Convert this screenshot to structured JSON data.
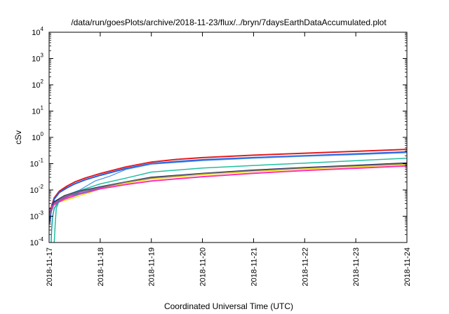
{
  "chart_data": {
    "type": "line",
    "title": "/data/run/goesPlots/archive/2018-11-23/flux/../bryn/7daysEarthDataAccumulated.plot",
    "xlabel": "Coordinated Universal Time (UTC)",
    "ylabel": "cSv",
    "x_tick_labels": [
      "2018-11-17",
      "2018-11-18",
      "2018-11-19",
      "2018-11-20",
      "2018-11-21",
      "2018-11-22",
      "2018-11-23",
      "2018-11-24"
    ],
    "xlim_days": [
      0,
      7
    ],
    "y_scale": "log",
    "y_exponents": [
      -4,
      -3,
      -2,
      -1,
      0,
      1,
      2,
      3,
      4
    ],
    "y_tick_base": "10",
    "ylim": [
      0.0001,
      10000
    ],
    "grid": false,
    "legend": "none",
    "series": [
      {
        "color": "#e41a1c",
        "width": 2.0,
        "x": [
          0,
          0.05,
          0.1,
          0.2,
          0.35,
          0.5,
          0.7,
          1.0,
          1.5,
          2.0,
          2.5,
          3.0,
          4.0,
          5.0,
          6.0,
          7.0
        ],
        "y": [
          0.0006,
          0.0025,
          0.005,
          0.009,
          0.014,
          0.02,
          0.028,
          0.042,
          0.075,
          0.115,
          0.145,
          0.17,
          0.21,
          0.25,
          0.295,
          0.35
        ]
      },
      {
        "color": "#1f5fe0",
        "width": 2.0,
        "x": [
          0,
          0.05,
          0.1,
          0.2,
          0.35,
          0.5,
          0.7,
          1.0,
          1.5,
          2.0,
          2.5,
          3.0,
          4.0,
          5.0,
          6.0,
          7.0
        ],
        "y": [
          0.0005,
          0.002,
          0.0045,
          0.008,
          0.012,
          0.017,
          0.024,
          0.036,
          0.065,
          0.1,
          0.12,
          0.14,
          0.17,
          0.2,
          0.235,
          0.28
        ]
      },
      {
        "color": "#4a8fe8",
        "width": 1.2,
        "x": [
          0,
          0.1,
          0.3,
          0.6,
          0.9,
          1.2,
          1.5,
          2.0,
          3.0,
          4.0,
          5.0,
          6.0,
          7.0
        ],
        "y": [
          0.0009,
          0.003,
          0.006,
          0.01,
          0.022,
          0.034,
          0.06,
          0.095,
          0.13,
          0.16,
          0.19,
          0.22,
          0.26
        ]
      },
      {
        "color": "#20c0a0",
        "width": 1.5,
        "x": [
          0.1,
          0.12,
          0.14,
          0.2,
          0.4,
          0.7,
          1.0,
          1.5,
          2.0,
          3.0,
          4.0,
          5.0,
          6.0,
          7.0
        ],
        "y": [
          0.0001,
          0.0005,
          0.002,
          0.004,
          0.007,
          0.011,
          0.017,
          0.028,
          0.048,
          0.068,
          0.085,
          0.105,
          0.13,
          0.16
        ]
      },
      {
        "color": "#202060",
        "width": 2.0,
        "x": [
          0,
          0.1,
          0.3,
          0.6,
          1.0,
          1.5,
          2.0,
          3.0,
          4.0,
          5.0,
          6.0,
          7.0
        ],
        "y": [
          0.0012,
          0.0035,
          0.006,
          0.009,
          0.013,
          0.02,
          0.03,
          0.042,
          0.056,
          0.07,
          0.085,
          0.105
        ]
      },
      {
        "color": "#8e44ad",
        "width": 1.8,
        "x": [
          0,
          0.1,
          0.3,
          0.6,
          1.0,
          1.5,
          2.0,
          3.0,
          4.0,
          5.0,
          6.0,
          7.0
        ],
        "y": [
          0.001,
          0.003,
          0.0055,
          0.0085,
          0.012,
          0.019,
          0.028,
          0.04,
          0.053,
          0.066,
          0.08,
          0.098
        ]
      },
      {
        "color": "#707070",
        "width": 1.5,
        "x": [
          0,
          0.1,
          0.3,
          0.6,
          1.0,
          1.5,
          2.0,
          3.0,
          4.0,
          5.0,
          6.0,
          7.0
        ],
        "y": [
          0.0011,
          0.0032,
          0.0058,
          0.0088,
          0.0125,
          0.02,
          0.029,
          0.041,
          0.054,
          0.068,
          0.082,
          0.1
        ]
      },
      {
        "color": "#f0e020",
        "width": 1.5,
        "x": [
          0,
          0.2,
          0.4,
          0.6,
          0.8,
          1.0,
          1.5,
          2.0,
          3.0,
          4.0,
          5.0,
          6.0,
          7.0
        ],
        "y": [
          0.002,
          0.0035,
          0.0045,
          0.006,
          0.008,
          0.011,
          0.018,
          0.026,
          0.038,
          0.05,
          0.063,
          0.076,
          0.092
        ]
      },
      {
        "color": "#ff30b0",
        "width": 2.0,
        "x": [
          0,
          0.1,
          0.3,
          0.6,
          1.0,
          1.5,
          2.0,
          3.0,
          4.0,
          5.0,
          6.0,
          7.0
        ],
        "y": [
          0.0018,
          0.0028,
          0.0045,
          0.007,
          0.011,
          0.016,
          0.022,
          0.032,
          0.043,
          0.055,
          0.067,
          0.082
        ]
      },
      {
        "color": "#10a0b0",
        "width": 1.5,
        "x": [
          0.04,
          0.05,
          0.07,
          0.1,
          0.2,
          0.4,
          0.7,
          1.0
        ],
        "y": [
          0.0001,
          0.0003,
          0.001,
          0.002,
          0.004,
          0.006,
          0.008,
          0.012
        ]
      },
      {
        "color": "#c040c0",
        "width": 1.2,
        "x": [
          0,
          0.1,
          0.3,
          0.5,
          0.8,
          1.0
        ],
        "y": [
          0.0015,
          0.003,
          0.005,
          0.007,
          0.009,
          0.012
        ]
      }
    ]
  }
}
